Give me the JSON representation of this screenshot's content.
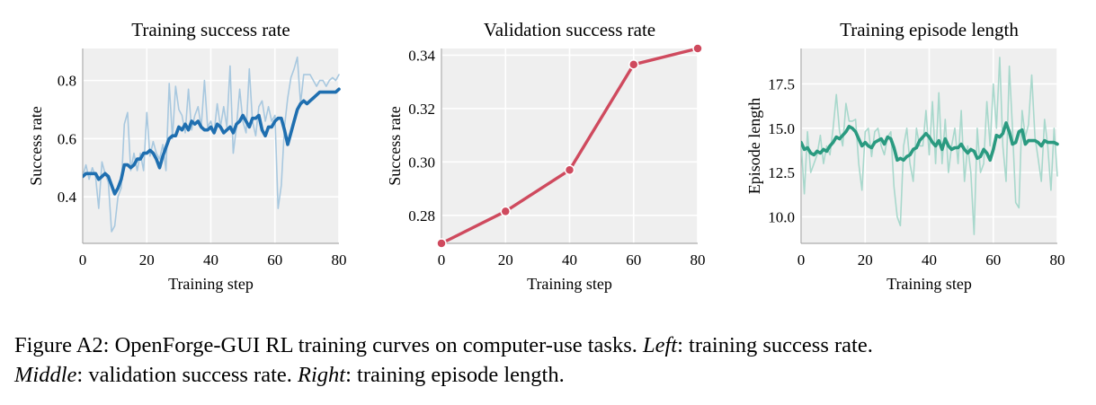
{
  "chart_data": [
    {
      "type": "line",
      "title": "Training success rate",
      "xlabel": "Training step",
      "ylabel": "Success rate",
      "xlim": [
        0,
        80
      ],
      "ylim": [
        0.24,
        0.91
      ],
      "xticks": [
        0,
        20,
        40,
        60,
        80
      ],
      "yticks": [
        0.4,
        0.6,
        0.8
      ],
      "ytick_decimals": 1,
      "grid": true,
      "color": "#1f6fb0",
      "raw_color": "#a8c8df",
      "series": [
        {
          "role": "raw",
          "x": [
            0,
            1,
            2,
            3,
            4,
            5,
            6,
            7,
            8,
            9,
            10,
            11,
            12,
            13,
            14,
            15,
            16,
            17,
            18,
            19,
            20,
            21,
            22,
            23,
            24,
            25,
            26,
            27,
            28,
            29,
            30,
            31,
            32,
            33,
            34,
            35,
            36,
            37,
            38,
            39,
            40,
            41,
            42,
            43,
            44,
            45,
            46,
            47,
            48,
            49,
            50,
            51,
            52,
            53,
            54,
            55,
            56,
            57,
            58,
            59,
            60,
            61,
            62,
            63,
            64,
            65,
            66,
            67,
            68,
            69,
            70,
            71,
            72,
            73,
            74,
            75,
            76,
            77,
            78,
            79,
            80
          ],
          "values": [
            0.47,
            0.51,
            0.46,
            0.5,
            0.47,
            0.36,
            0.52,
            0.48,
            0.45,
            0.28,
            0.3,
            0.4,
            0.43,
            0.65,
            0.69,
            0.49,
            0.55,
            0.49,
            0.55,
            0.49,
            0.69,
            0.54,
            0.59,
            0.55,
            0.53,
            0.58,
            0.49,
            0.79,
            0.6,
            0.78,
            0.7,
            0.68,
            0.62,
            0.77,
            0.63,
            0.68,
            0.71,
            0.64,
            0.8,
            0.64,
            0.66,
            0.62,
            0.72,
            0.64,
            0.71,
            0.64,
            0.85,
            0.55,
            0.64,
            0.77,
            0.66,
            0.62,
            0.84,
            0.66,
            0.61,
            0.71,
            0.73,
            0.66,
            0.71,
            0.66,
            0.68,
            0.36,
            0.44,
            0.64,
            0.74,
            0.81,
            0.84,
            0.88,
            0.72,
            0.82,
            0.82,
            0.82,
            0.8,
            0.78,
            0.8,
            0.8,
            0.78,
            0.8,
            0.81,
            0.8,
            0.82
          ]
        },
        {
          "role": "smoothed",
          "x": [
            0,
            1,
            2,
            3,
            4,
            5,
            6,
            7,
            8,
            9,
            10,
            11,
            12,
            13,
            14,
            15,
            16,
            17,
            18,
            19,
            20,
            21,
            22,
            23,
            24,
            25,
            26,
            27,
            28,
            29,
            30,
            31,
            32,
            33,
            34,
            35,
            36,
            37,
            38,
            39,
            40,
            41,
            42,
            43,
            44,
            45,
            46,
            47,
            48,
            49,
            50,
            51,
            52,
            53,
            54,
            55,
            56,
            57,
            58,
            59,
            60,
            61,
            62,
            63,
            64,
            65,
            66,
            67,
            68,
            69,
            70,
            71,
            72,
            73,
            74,
            75,
            76,
            77,
            78,
            79,
            80
          ],
          "values": [
            0.47,
            0.48,
            0.48,
            0.48,
            0.48,
            0.46,
            0.47,
            0.48,
            0.47,
            0.44,
            0.41,
            0.43,
            0.46,
            0.51,
            0.51,
            0.5,
            0.51,
            0.53,
            0.53,
            0.55,
            0.55,
            0.56,
            0.55,
            0.53,
            0.5,
            0.54,
            0.57,
            0.6,
            0.61,
            0.61,
            0.64,
            0.63,
            0.65,
            0.63,
            0.66,
            0.65,
            0.66,
            0.64,
            0.63,
            0.63,
            0.64,
            0.62,
            0.65,
            0.64,
            0.62,
            0.63,
            0.64,
            0.62,
            0.65,
            0.66,
            0.68,
            0.66,
            0.64,
            0.67,
            0.67,
            0.68,
            0.63,
            0.61,
            0.64,
            0.64,
            0.66,
            0.67,
            0.67,
            0.63,
            0.58,
            0.62,
            0.66,
            0.7,
            0.72,
            0.73,
            0.72,
            0.73,
            0.74,
            0.75,
            0.76,
            0.76,
            0.76,
            0.76,
            0.76,
            0.76,
            0.77
          ]
        }
      ]
    },
    {
      "type": "line",
      "title": "Validation success rate",
      "xlabel": "Training step",
      "ylabel": "Success rate",
      "xlim": [
        0,
        80
      ],
      "ylim": [
        0.2695,
        0.3425
      ],
      "xticks": [
        0,
        20,
        40,
        60,
        80
      ],
      "yticks": [
        0.28,
        0.3,
        0.32,
        0.34
      ],
      "ytick_decimals": 2,
      "grid": true,
      "color": "#cf4a5e",
      "markers": true,
      "series": [
        {
          "role": "main",
          "x": [
            0,
            20,
            40,
            60,
            80
          ],
          "values": [
            0.2695,
            0.2815,
            0.297,
            0.3365,
            0.3425
          ]
        }
      ]
    },
    {
      "type": "line",
      "title": "Training episode length",
      "xlabel": "Training step",
      "ylabel": "Episode length",
      "xlim": [
        0,
        80
      ],
      "ylim": [
        8.5,
        19.5
      ],
      "xticks": [
        0,
        20,
        40,
        60,
        80
      ],
      "yticks": [
        10.0,
        12.5,
        15.0,
        17.5
      ],
      "ytick_decimals": 1,
      "grid": true,
      "color": "#2a9a80",
      "raw_color": "#a8d8cc",
      "series": [
        {
          "role": "raw",
          "x": [
            0,
            1,
            2,
            3,
            4,
            5,
            6,
            7,
            8,
            9,
            10,
            11,
            12,
            13,
            14,
            15,
            16,
            17,
            18,
            19,
            20,
            21,
            22,
            23,
            24,
            25,
            26,
            27,
            28,
            29,
            30,
            31,
            32,
            33,
            34,
            35,
            36,
            37,
            38,
            39,
            40,
            41,
            42,
            43,
            44,
            45,
            46,
            47,
            48,
            49,
            50,
            51,
            52,
            53,
            54,
            55,
            56,
            57,
            58,
            59,
            60,
            61,
            62,
            63,
            64,
            65,
            66,
            67,
            68,
            69,
            70,
            71,
            72,
            73,
            74,
            75,
            76,
            77,
            78,
            79,
            80
          ],
          "values": [
            14.2,
            11.3,
            14.8,
            12.5,
            13.0,
            13.5,
            14.6,
            13.0,
            14.0,
            13.5,
            15.0,
            16.9,
            14.8,
            14.0,
            16.4,
            15.4,
            15.4,
            15.5,
            13.0,
            11.5,
            14.8,
            15.0,
            13.4,
            14.8,
            15.0,
            14.0,
            13.5,
            14.5,
            14.8,
            11.7,
            10.0,
            9.5,
            14.0,
            15.0,
            13.0,
            12.0,
            15.0,
            14.0,
            14.0,
            16.0,
            13.5,
            16.5,
            13.0,
            17.0,
            13.0,
            15.5,
            12.5,
            14.0,
            15.0,
            13.0,
            16.0,
            12.0,
            14.0,
            12.5,
            9.0,
            15.0,
            12.5,
            13.0,
            16.5,
            14.0,
            17.5,
            15.0,
            19.0,
            14.0,
            12.0,
            18.5,
            15.0,
            10.8,
            10.5,
            16.0,
            14.5,
            15.2,
            18.0,
            14.5,
            13.3,
            12.0,
            15.5,
            14.0,
            11.5,
            15.0,
            12.3
          ]
        },
        {
          "role": "smoothed",
          "x": [
            0,
            1,
            2,
            3,
            4,
            5,
            6,
            7,
            8,
            9,
            10,
            11,
            12,
            13,
            14,
            15,
            16,
            17,
            18,
            19,
            20,
            21,
            22,
            23,
            24,
            25,
            26,
            27,
            28,
            29,
            30,
            31,
            32,
            33,
            34,
            35,
            36,
            37,
            38,
            39,
            40,
            41,
            42,
            43,
            44,
            45,
            46,
            47,
            48,
            49,
            50,
            51,
            52,
            53,
            54,
            55,
            56,
            57,
            58,
            59,
            60,
            61,
            62,
            63,
            64,
            65,
            66,
            67,
            68,
            69,
            70,
            71,
            72,
            73,
            74,
            75,
            76,
            77,
            78,
            79,
            80
          ],
          "values": [
            14.2,
            13.8,
            13.9,
            13.6,
            13.5,
            13.7,
            13.6,
            13.8,
            13.7,
            14.0,
            14.2,
            14.5,
            14.4,
            14.6,
            14.8,
            15.1,
            15.0,
            14.8,
            14.4,
            14.0,
            14.2,
            14.0,
            13.9,
            14.2,
            14.3,
            14.4,
            14.1,
            14.5,
            14.4,
            13.9,
            13.2,
            13.3,
            13.2,
            13.4,
            13.5,
            13.8,
            13.9,
            14.3,
            14.5,
            14.7,
            14.5,
            14.2,
            14.0,
            14.3,
            13.8,
            14.4,
            14.0,
            13.8,
            13.9,
            13.9,
            14.1,
            13.8,
            13.6,
            13.8,
            13.7,
            13.3,
            13.4,
            13.8,
            13.6,
            13.2,
            13.8,
            14.6,
            14.5,
            14.7,
            15.3,
            14.8,
            14.1,
            14.2,
            14.8,
            14.9,
            14.1,
            14.3,
            14.3,
            14.3,
            14.2,
            14.0,
            14.3,
            14.2,
            14.2,
            14.2,
            14.1
          ]
        }
      ]
    }
  ],
  "caption": {
    "prefix": "Figure A2: OpenForge-GUI RL training curves on computer-use tasks. ",
    "left_label": "Left",
    "left_text": ": training success rate.",
    "middle_label": "Middle",
    "middle_text": ": validation success rate. ",
    "right_label": "Right",
    "right_text": ": training episode length."
  }
}
